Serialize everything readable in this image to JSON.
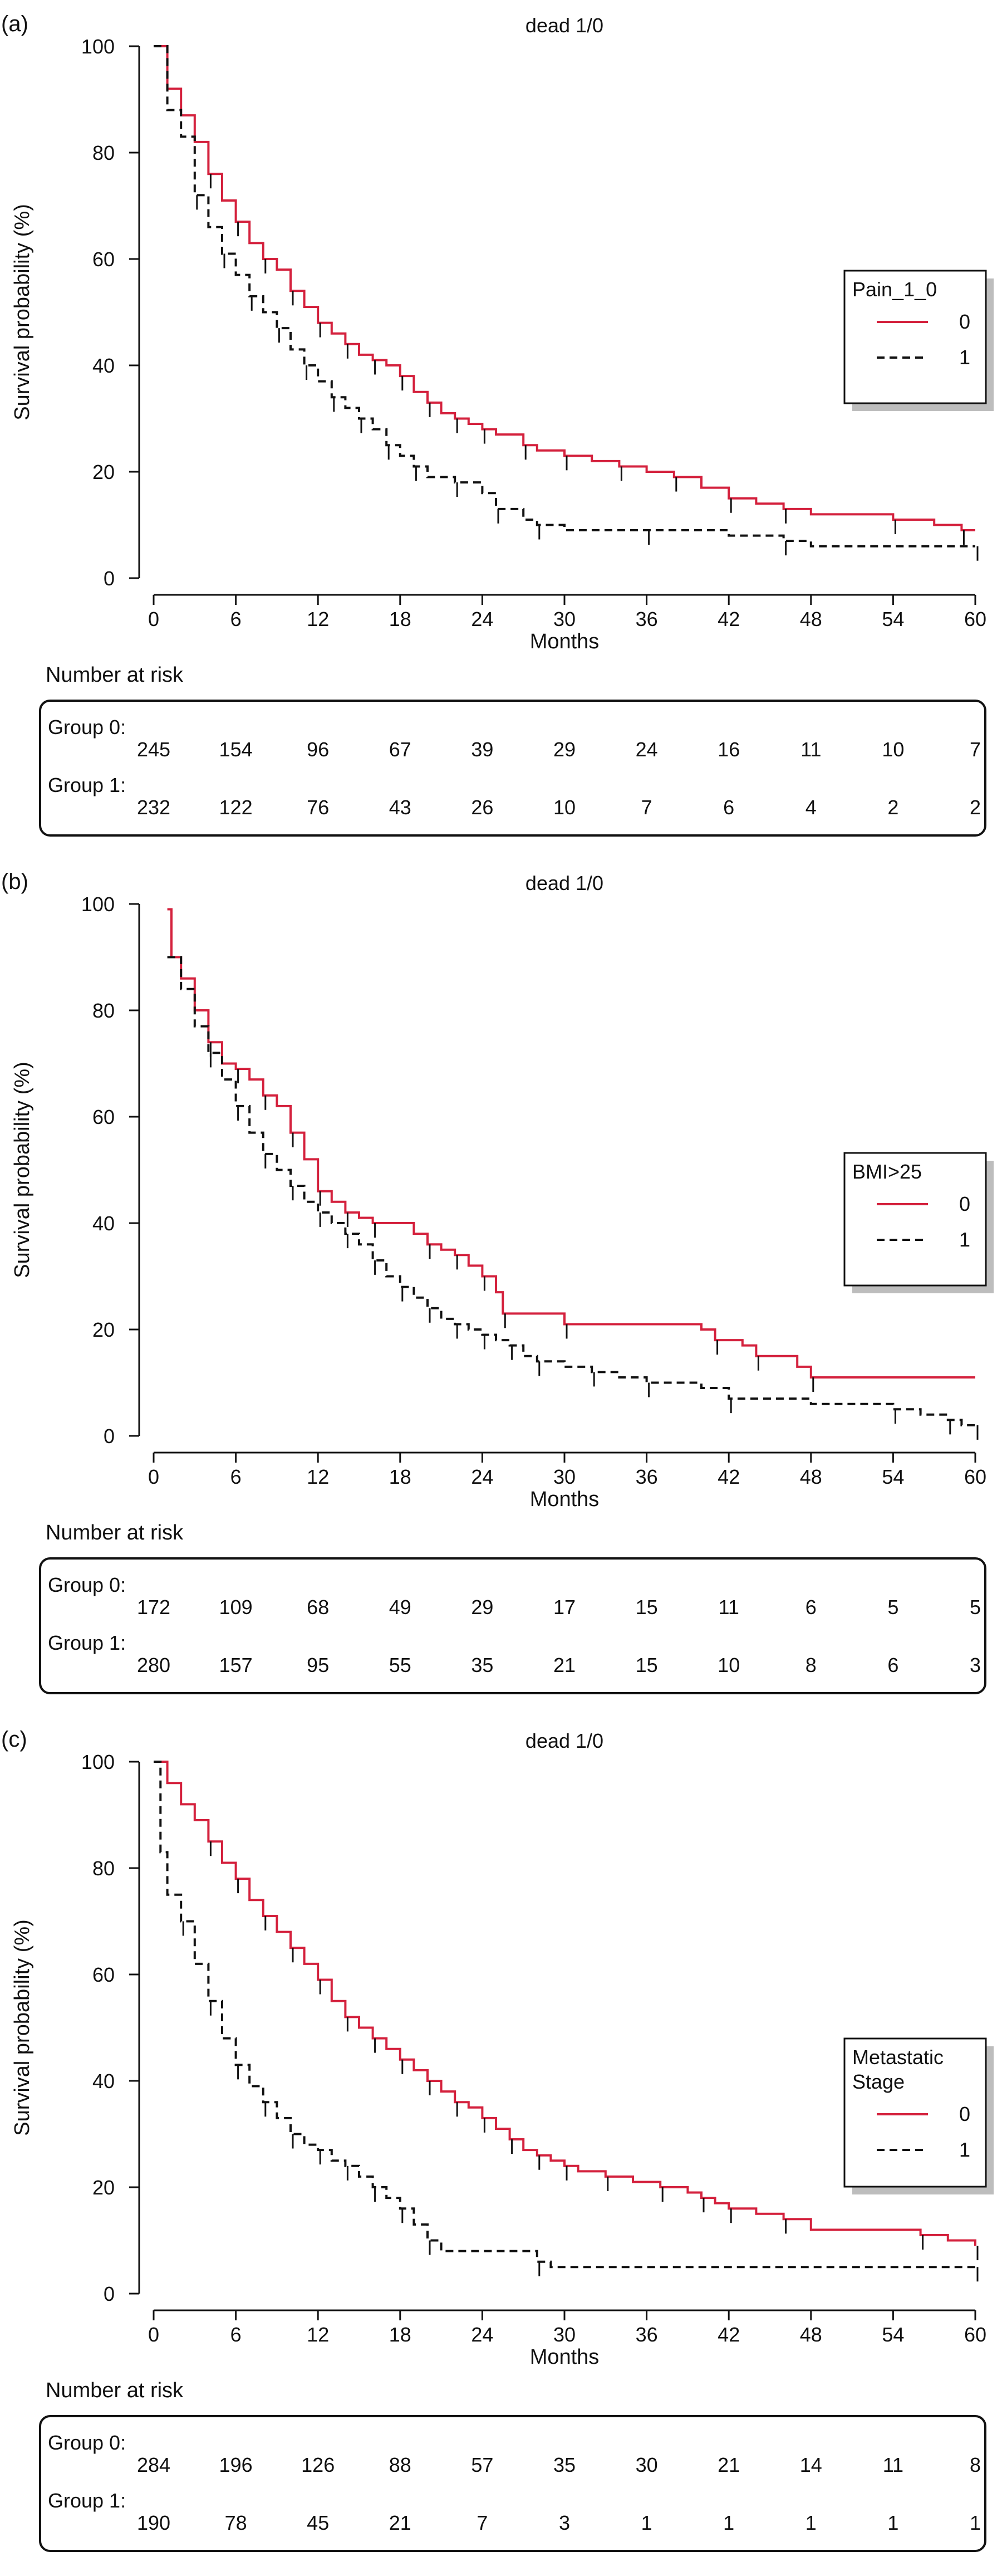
{
  "chart_data": [
    {
      "type": "line",
      "panel_label": "(a)",
      "title": "dead 1/0",
      "xlabel": "Months",
      "ylabel": "Survival probability (%)",
      "xlim": [
        0,
        60
      ],
      "ylim": [
        0,
        100
      ],
      "x_ticks": [
        0,
        6,
        12,
        18,
        24,
        30,
        36,
        42,
        48,
        54,
        60
      ],
      "y_ticks": [
        0,
        20,
        40,
        60,
        80,
        100
      ],
      "legend": {
        "title": "Pain_1_0",
        "position": "right",
        "entries": [
          "0",
          "1"
        ]
      },
      "series": [
        {
          "name": "0",
          "color": "#d4213d",
          "dash": "solid",
          "steps": [
            [
              0,
              100
            ],
            [
              1,
              92
            ],
            [
              2,
              87
            ],
            [
              3,
              82
            ],
            [
              4,
              76
            ],
            [
              5,
              71
            ],
            [
              6,
              67
            ],
            [
              7,
              63
            ],
            [
              8,
              60
            ],
            [
              9,
              58
            ],
            [
              10,
              54
            ],
            [
              11,
              51
            ],
            [
              12,
              48
            ],
            [
              13,
              46
            ],
            [
              14,
              44
            ],
            [
              15,
              42
            ],
            [
              16,
              41
            ],
            [
              17,
              40
            ],
            [
              18,
              38
            ],
            [
              19,
              35
            ],
            [
              20,
              33
            ],
            [
              21,
              31
            ],
            [
              22,
              30
            ],
            [
              23,
              29
            ],
            [
              24,
              28
            ],
            [
              25,
              27
            ],
            [
              27,
              25
            ],
            [
              28,
              24
            ],
            [
              30,
              23
            ],
            [
              32,
              22
            ],
            [
              34,
              21
            ],
            [
              36,
              20
            ],
            [
              38,
              19
            ],
            [
              40,
              17
            ],
            [
              42,
              15
            ],
            [
              44,
              14
            ],
            [
              46,
              13
            ],
            [
              48,
              12
            ],
            [
              54,
              11
            ],
            [
              57,
              10
            ],
            [
              59,
              9
            ],
            [
              60,
              9
            ]
          ]
        },
        {
          "name": "1",
          "color": "#111111",
          "dash": "dashed",
          "steps": [
            [
              0,
              100
            ],
            [
              1,
              88
            ],
            [
              2,
              83
            ],
            [
              3,
              72
            ],
            [
              4,
              66
            ],
            [
              5,
              61
            ],
            [
              6,
              57
            ],
            [
              7,
              53
            ],
            [
              8,
              50
            ],
            [
              9,
              47
            ],
            [
              10,
              43
            ],
            [
              11,
              40
            ],
            [
              12,
              37
            ],
            [
              13,
              34
            ],
            [
              14,
              32
            ],
            [
              15,
              30
            ],
            [
              16,
              28
            ],
            [
              17,
              25
            ],
            [
              18,
              23
            ],
            [
              19,
              21
            ],
            [
              20,
              19
            ],
            [
              22,
              18
            ],
            [
              24,
              16
            ],
            [
              25,
              13
            ],
            [
              27,
              11
            ],
            [
              28,
              10
            ],
            [
              30,
              9
            ],
            [
              36,
              9
            ],
            [
              42,
              8
            ],
            [
              46,
              7
            ],
            [
              48,
              6
            ],
            [
              60,
              6
            ]
          ]
        }
      ],
      "risk_table": {
        "header": "Number at risk",
        "rows": [
          {
            "label": "Group 0:",
            "values": [
              "245",
              "154",
              "96",
              "67",
              "39",
              "29",
              "24",
              "16",
              "11",
              "10",
              "7"
            ]
          },
          {
            "label": "Group 1:",
            "values": [
              "232",
              "122",
              "76",
              "43",
              "26",
              "10",
              "7",
              "6",
              "4",
              "2",
              "2"
            ]
          }
        ]
      }
    },
    {
      "type": "line",
      "panel_label": "(b)",
      "title": "dead 1/0",
      "xlabel": "Months",
      "ylabel": "Survival probability (%)",
      "xlim": [
        0,
        60
      ],
      "ylim": [
        0,
        100
      ],
      "x_ticks": [
        0,
        6,
        12,
        18,
        24,
        30,
        36,
        42,
        48,
        54,
        60
      ],
      "y_ticks": [
        0,
        20,
        40,
        60,
        80,
        100
      ],
      "legend": {
        "title": "BMI>25",
        "position": "right",
        "entries": [
          "0",
          "1"
        ]
      },
      "series": [
        {
          "name": "0",
          "color": "#d4213d",
          "dash": "solid",
          "steps": [
            [
              1,
              99
            ],
            [
              1.3,
              90
            ],
            [
              2,
              86
            ],
            [
              3,
              80
            ],
            [
              4,
              74
            ],
            [
              5,
              70
            ],
            [
              6,
              69
            ],
            [
              7,
              67
            ],
            [
              8,
              64
            ],
            [
              9,
              62
            ],
            [
              10,
              57
            ],
            [
              11,
              52
            ],
            [
              12,
              46
            ],
            [
              13,
              44
            ],
            [
              14,
              42
            ],
            [
              15,
              41
            ],
            [
              16,
              40
            ],
            [
              19,
              38
            ],
            [
              20,
              36
            ],
            [
              21,
              35
            ],
            [
              22,
              34
            ],
            [
              23,
              32
            ],
            [
              24,
              30
            ],
            [
              25,
              27
            ],
            [
              25.5,
              23
            ],
            [
              29,
              23
            ],
            [
              30,
              21
            ],
            [
              40,
              20
            ],
            [
              41,
              18
            ],
            [
              43,
              17
            ],
            [
              44,
              15
            ],
            [
              47,
              13
            ],
            [
              48,
              11
            ],
            [
              60,
              11
            ]
          ]
        },
        {
          "name": "1",
          "color": "#111111",
          "dash": "dashed",
          "steps": [
            [
              1,
              90
            ],
            [
              2,
              84
            ],
            [
              3,
              77
            ],
            [
              4,
              72
            ],
            [
              5,
              67
            ],
            [
              6,
              62
            ],
            [
              7,
              57
            ],
            [
              8,
              53
            ],
            [
              9,
              50
            ],
            [
              10,
              47
            ],
            [
              11,
              44
            ],
            [
              12,
              42
            ],
            [
              13,
              40
            ],
            [
              14,
              38
            ],
            [
              15,
              36
            ],
            [
              16,
              33
            ],
            [
              17,
              30
            ],
            [
              18,
              28
            ],
            [
              19,
              26
            ],
            [
              20,
              24
            ],
            [
              21,
              22
            ],
            [
              22,
              21
            ],
            [
              23,
              20
            ],
            [
              24,
              19
            ],
            [
              25,
              18
            ],
            [
              26,
              17
            ],
            [
              27,
              15
            ],
            [
              28,
              14
            ],
            [
              30,
              13
            ],
            [
              32,
              12
            ],
            [
              34,
              11
            ],
            [
              36,
              10
            ],
            [
              40,
              9
            ],
            [
              42,
              7
            ],
            [
              48,
              6
            ],
            [
              54,
              5
            ],
            [
              56,
              4
            ],
            [
              58,
              3
            ],
            [
              59,
              2
            ],
            [
              60,
              2
            ]
          ]
        }
      ],
      "risk_table": {
        "header": "Number at risk",
        "rows": [
          {
            "label": "Group 0:",
            "values": [
              "172",
              "109",
              "68",
              "49",
              "29",
              "17",
              "15",
              "11",
              "6",
              "5",
              "5"
            ]
          },
          {
            "label": "Group 1:",
            "values": [
              "280",
              "157",
              "95",
              "55",
              "35",
              "21",
              "15",
              "10",
              "8",
              "6",
              "3"
            ]
          }
        ]
      }
    },
    {
      "type": "line",
      "panel_label": "(c)",
      "title": "dead 1/0",
      "xlabel": "Months",
      "ylabel": "Survival probability (%)",
      "xlim": [
        0,
        60
      ],
      "ylim": [
        0,
        100
      ],
      "x_ticks": [
        0,
        6,
        12,
        18,
        24,
        30,
        36,
        42,
        48,
        54,
        60
      ],
      "y_ticks": [
        0,
        20,
        40,
        60,
        80,
        100
      ],
      "legend": {
        "title": "Metastatic Stage",
        "position": "right",
        "entries": [
          "0",
          "1"
        ]
      },
      "series": [
        {
          "name": "0",
          "color": "#d4213d",
          "dash": "solid",
          "steps": [
            [
              0,
              100
            ],
            [
              1,
              96
            ],
            [
              2,
              92
            ],
            [
              3,
              89
            ],
            [
              4,
              85
            ],
            [
              5,
              81
            ],
            [
              6,
              78
            ],
            [
              7,
              74
            ],
            [
              8,
              71
            ],
            [
              9,
              68
            ],
            [
              10,
              65
            ],
            [
              11,
              62
            ],
            [
              12,
              59
            ],
            [
              13,
              55
            ],
            [
              14,
              52
            ],
            [
              15,
              50
            ],
            [
              16,
              48
            ],
            [
              17,
              46
            ],
            [
              18,
              44
            ],
            [
              19,
              42
            ],
            [
              20,
              40
            ],
            [
              21,
              38
            ],
            [
              22,
              36
            ],
            [
              23,
              35
            ],
            [
              24,
              33
            ],
            [
              25,
              31
            ],
            [
              26,
              29
            ],
            [
              27,
              27
            ],
            [
              28,
              26
            ],
            [
              29,
              25
            ],
            [
              30,
              24
            ],
            [
              31,
              23
            ],
            [
              33,
              22
            ],
            [
              35,
              21
            ],
            [
              37,
              20
            ],
            [
              39,
              19
            ],
            [
              40,
              18
            ],
            [
              41,
              17
            ],
            [
              42,
              16
            ],
            [
              44,
              15
            ],
            [
              46,
              14
            ],
            [
              48,
              12
            ],
            [
              56,
              11
            ],
            [
              58,
              10
            ],
            [
              60,
              9
            ]
          ]
        },
        {
          "name": "1",
          "color": "#111111",
          "dash": "dashed",
          "steps": [
            [
              0,
              100
            ],
            [
              0.5,
              83
            ],
            [
              1,
              75
            ],
            [
              2,
              70
            ],
            [
              3,
              62
            ],
            [
              4,
              55
            ],
            [
              5,
              48
            ],
            [
              6,
              43
            ],
            [
              7,
              39
            ],
            [
              8,
              36
            ],
            [
              9,
              33
            ],
            [
              10,
              30
            ],
            [
              11,
              28
            ],
            [
              12,
              27
            ],
            [
              13,
              25
            ],
            [
              14,
              24
            ],
            [
              15,
              22
            ],
            [
              16,
              20
            ],
            [
              17,
              18
            ],
            [
              18,
              16
            ],
            [
              19,
              13
            ],
            [
              20,
              10
            ],
            [
              21,
              8
            ],
            [
              28,
              6
            ],
            [
              29,
              5
            ],
            [
              60,
              5
            ]
          ]
        }
      ],
      "risk_table": {
        "header": "Number at risk",
        "rows": [
          {
            "label": "Group 0:",
            "values": [
              "284",
              "196",
              "126",
              "88",
              "57",
              "35",
              "30",
              "21",
              "14",
              "11",
              "8"
            ]
          },
          {
            "label": "Group 1:",
            "values": [
              "190",
              "78",
              "45",
              "21",
              "7",
              "3",
              "1",
              "1",
              "1",
              "1",
              "1"
            ]
          }
        ]
      }
    }
  ]
}
